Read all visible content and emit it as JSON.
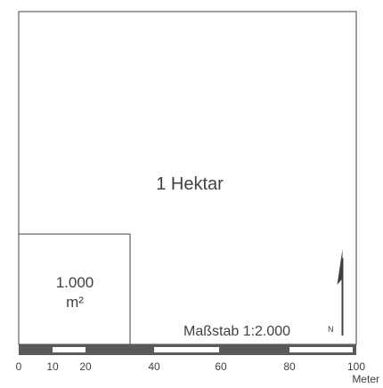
{
  "hectare": {
    "label": "1 Hektar"
  },
  "small_square": {
    "value": "1.000",
    "unit": "m²"
  },
  "scale": {
    "text": "Maßstab 1:2.000",
    "north_label": "N",
    "unit_label": "Meter",
    "ticks": [
      "0",
      "10",
      "20",
      "40",
      "60",
      "80",
      "100"
    ]
  },
  "colors": {
    "line": "#404040",
    "bar_dark": "#5a5a5a",
    "background": "#ffffff"
  }
}
